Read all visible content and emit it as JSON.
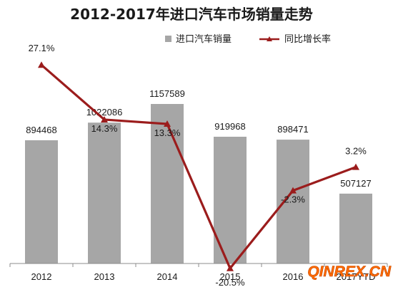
{
  "chart_data": {
    "type": "bar",
    "title": "2012-2017年进口汽车市场销量走势",
    "categories": [
      "2012",
      "2013",
      "2014",
      "2015",
      "2016",
      "2017YTD"
    ],
    "series": [
      {
        "name": "进口汽车销量",
        "type": "bar",
        "values": [
          894468,
          1022086,
          1157589,
          919968,
          898471,
          507127
        ],
        "labels": [
          "894468",
          "1022086",
          "1157589",
          "919968",
          "898471",
          "507127"
        ],
        "color": "#a6a6a6"
      },
      {
        "name": "同比增长率",
        "type": "line",
        "axis": "secondary",
        "values": [
          27.1,
          14.3,
          13.3,
          -20.5,
          -2.3,
          3.2
        ],
        "labels": [
          "27.1%",
          "14.3%",
          "13.3%",
          "-20.5%",
          "-2.3%",
          "3.2%"
        ],
        "color": "#9b1c1c"
      }
    ],
    "ylim": [
      0,
      1300000
    ],
    "y2lim": [
      -25,
      35
    ],
    "xlabel": "",
    "ylabel": "",
    "grid": false,
    "legend": "top-right"
  },
  "watermark": {
    "text": "QINREX.CN",
    "color": "#ff6a00"
  }
}
